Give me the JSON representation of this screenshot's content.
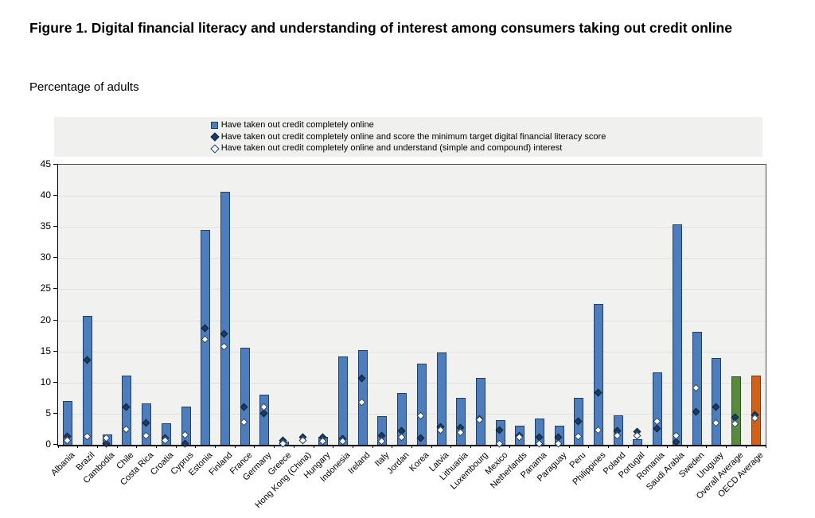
{
  "figure": {
    "title": "Figure 1. Digital financial literacy and understanding of interest among consumers taking out credit online",
    "subtitle": "Percentage of adults"
  },
  "legend": [
    {
      "label": "Have taken out credit completely online",
      "marker": "square",
      "color": "#4d7dbb"
    },
    {
      "label": "Have taken out credit completely online and score the minimum target digital financial literacy score",
      "marker": "diamond-filled",
      "color": "#1c3b63"
    },
    {
      "label": "Have taken out credit completely online and understand (simple and compound) interest",
      "marker": "diamond-open",
      "color": "#ffffff"
    }
  ],
  "chart_data": {
    "type": "bar",
    "title": "Figure 1. Digital financial literacy and understanding of interest among consumers taking out credit online",
    "subtitle": "Percentage of adults",
    "xlabel": "",
    "ylabel": "Percentage of adults",
    "ylim": [
      0,
      45
    ],
    "yticks": [
      0,
      5,
      10,
      15,
      20,
      25,
      30,
      35,
      40,
      45
    ],
    "grid": true,
    "legend_position": "top",
    "categories": [
      "Albania",
      "Brazil",
      "Cambodia",
      "Chile",
      "Costa Rica",
      "Croatia",
      "Cyprus",
      "Estonia",
      "Finland",
      "France",
      "Germany",
      "Greece",
      "Hong Kong (China)",
      "Hungary",
      "Indonesia",
      "Ireland",
      "Italy",
      "Jordan",
      "Korea",
      "Latvia",
      "Lithuania",
      "Luxembourg",
      "Mexico",
      "Netherlands",
      "Panama",
      "Paraguay",
      "Peru",
      "Philippines",
      "Poland",
      "Portugal",
      "Romania",
      "Saudi Arabia",
      "Sweden",
      "Uruguay",
      "Overall Average",
      "OECD Average"
    ],
    "series": [
      {
        "name": "Have taken out credit completely online",
        "style": "bar",
        "values": [
          7.0,
          20.7,
          1.7,
          11.1,
          6.6,
          3.5,
          6.2,
          34.5,
          40.6,
          15.6,
          8.0,
          0.5,
          0,
          1.3,
          14.2,
          15.2,
          4.6,
          8.3,
          13.0,
          14.8,
          7.6,
          10.7,
          4.0,
          3.1,
          4.2,
          3.1,
          7.6,
          22.6,
          4.7,
          0.9,
          11.6,
          35.4,
          18.1,
          13.9,
          11.0,
          11.1
        ]
      },
      {
        "name": "Have taken out credit completely online and score the minimum target digital financial literacy score",
        "style": "filled-diamond",
        "values": [
          1.2,
          13.5,
          0.1,
          6.0,
          3.4,
          0.9,
          0.1,
          18.6,
          17.7,
          5.9,
          4.9,
          0.6,
          1.1,
          1.1,
          0.8,
          10.6,
          1.3,
          2.1,
          0.9,
          2.7,
          2.6,
          4.0,
          2.3,
          1.3,
          1.1,
          1.1,
          3.6,
          8.3,
          2.1,
          2.0,
          2.5,
          0.3,
          5.2,
          5.9,
          4.3,
          4.7
        ]
      },
      {
        "name": "Have taken out credit completely online and understand (simple and compound) interest",
        "style": "open-diamond",
        "values": [
          0.6,
          1.2,
          0.9,
          2.4,
          1.3,
          0.6,
          1.5,
          16.8,
          15.6,
          3.5,
          6.0,
          0.1,
          0.6,
          0.4,
          0.4,
          6.7,
          0.5,
          1.1,
          4.6,
          2.3,
          1.9,
          3.9,
          0.1,
          1.1,
          0.1,
          0.1,
          1.2,
          2.3,
          1.4,
          1.3,
          3.6,
          1.4,
          9.0,
          3.4,
          3.3,
          4.1
        ]
      }
    ],
    "bar_colors": {
      "default": {
        "fill": "#4d7dbb",
        "border": "#1c3f6e"
      },
      "Overall Average": {
        "fill": "#568b3e",
        "border": "#2d501c"
      },
      "OECD Average": {
        "fill": "#d16019",
        "border": "#7c3911"
      }
    }
  }
}
